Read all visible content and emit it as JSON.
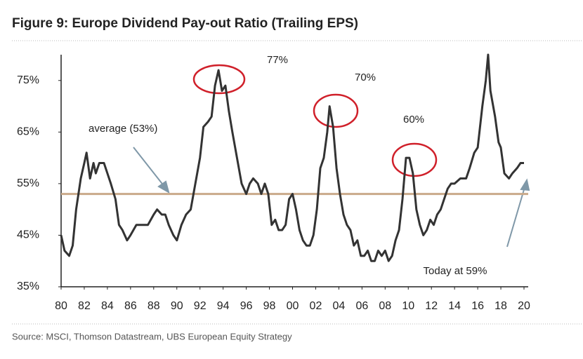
{
  "chart_data": {
    "type": "line",
    "title": "Figure 9: Europe Dividend Pay-out Ratio (Trailing EPS)",
    "source": "Source:  MSCI, Thomson Datastream, UBS European Equity Strategy",
    "annotations": [
      "77%",
      "70%",
      "60%",
      "average (53%)",
      "Today at 59%"
    ],
    "average": 53,
    "color": "#333333",
    "average_color": "#c9a98a",
    "x": [
      1980,
      1980.3,
      1980.7,
      1981,
      1981.3,
      1981.7,
      1982,
      1982.2,
      1982.5,
      1982.8,
      1983,
      1983.3,
      1983.7,
      1984,
      1984.3,
      1984.7,
      1985,
      1985.3,
      1985.7,
      1986,
      1986.5,
      1987,
      1987.5,
      1988,
      1988.3,
      1988.7,
      1989,
      1989.3,
      1989.7,
      1990,
      1990.4,
      1990.8,
      1991.2,
      1991.6,
      1992,
      1992.3,
      1992.7,
      1993,
      1993.3,
      1993.6,
      1993.9,
      1994.2,
      1994.5,
      1994.8,
      1995.2,
      1995.6,
      1996,
      1996.3,
      1996.6,
      1997,
      1997.3,
      1997.6,
      1997.9,
      1998.2,
      1998.5,
      1998.8,
      1999.1,
      1999.4,
      1999.7,
      2000,
      2000.3,
      2000.6,
      2000.9,
      2001.2,
      2001.5,
      2001.8,
      2002.1,
      2002.4,
      2002.7,
      2003,
      2003.2,
      2003.5,
      2003.8,
      2004.1,
      2004.4,
      2004.7,
      2005,
      2005.3,
      2005.6,
      2005.9,
      2006.2,
      2006.5,
      2006.8,
      2007.1,
      2007.4,
      2007.7,
      2008,
      2008.3,
      2008.6,
      2008.9,
      2009.2,
      2009.5,
      2009.8,
      2010.1,
      2010.4,
      2010.7,
      2011,
      2011.3,
      2011.6,
      2011.9,
      2012.2,
      2012.5,
      2012.8,
      2013.1,
      2013.4,
      2013.7,
      2014,
      2014.5,
      2015,
      2015.3,
      2015.7,
      2016,
      2016.4,
      2016.7,
      2016.9,
      2017.1,
      2017.5,
      2017.8,
      2018,
      2018.3,
      2018.7,
      2019,
      2019.4,
      2019.7,
      2020
    ],
    "values": [
      45,
      42,
      41,
      43,
      50,
      56,
      59,
      61,
      56,
      59,
      57,
      59,
      59,
      57,
      55,
      52,
      47,
      46,
      44,
      45,
      47,
      47,
      47,
      49,
      50,
      49,
      49,
      47,
      45,
      44,
      47,
      49,
      50,
      55,
      60,
      66,
      67,
      68,
      74,
      77,
      73,
      74,
      69,
      65,
      60,
      55,
      53,
      55,
      56,
      55,
      53,
      55,
      53,
      47,
      48,
      46,
      46,
      47,
      52,
      53,
      50,
      46,
      44,
      43,
      43,
      45,
      50,
      58,
      60,
      65,
      70,
      66,
      58,
      53,
      49,
      47,
      46,
      43,
      44,
      41,
      41,
      42,
      40,
      40,
      42,
      41,
      42,
      40,
      41,
      44,
      46,
      52,
      60,
      60,
      57,
      50,
      47,
      45,
      46,
      48,
      47,
      49,
      50,
      52,
      54,
      55,
      55,
      56,
      56,
      58,
      61,
      62,
      70,
      75,
      80,
      73,
      68,
      63,
      62,
      57,
      56,
      57,
      58,
      59,
      59
    ],
    "xlim": [
      1980,
      2020
    ],
    "xticks": [
      {
        "value": 1980,
        "label": "80"
      },
      {
        "value": 1982,
        "label": "82"
      },
      {
        "value": 1984,
        "label": "84"
      },
      {
        "value": 1986,
        "label": "86"
      },
      {
        "value": 1988,
        "label": "88"
      },
      {
        "value": 1990,
        "label": "90"
      },
      {
        "value": 1992,
        "label": "92"
      },
      {
        "value": 1994,
        "label": "94"
      },
      {
        "value": 1996,
        "label": "96"
      },
      {
        "value": 1998,
        "label": "98"
      },
      {
        "value": 2000,
        "label": "00"
      },
      {
        "value": 2002,
        "label": "02"
      },
      {
        "value": 2004,
        "label": "04"
      },
      {
        "value": 2006,
        "label": "06"
      },
      {
        "value": 2008,
        "label": "08"
      },
      {
        "value": 2010,
        "label": "10"
      },
      {
        "value": 2012,
        "label": "12"
      },
      {
        "value": 2014,
        "label": "14"
      },
      {
        "value": 2016,
        "label": "16"
      },
      {
        "value": 2018,
        "label": "18"
      },
      {
        "value": 2020,
        "label": "20"
      }
    ],
    "ylim": [
      35,
      80
    ],
    "yticks": [
      {
        "value": 35,
        "label": "35%"
      },
      {
        "value": 45,
        "label": "45%"
      },
      {
        "value": 55,
        "label": "55%"
      },
      {
        "value": 65,
        "label": "65%"
      },
      {
        "value": 75,
        "label": "75%"
      }
    ]
  }
}
